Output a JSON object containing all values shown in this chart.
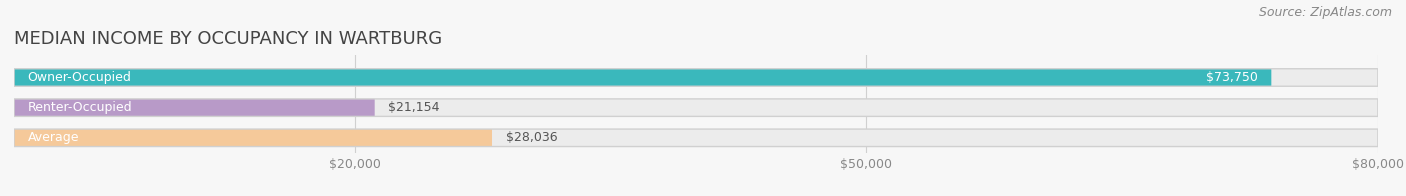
{
  "title": "MEDIAN INCOME BY OCCUPANCY IN WARTBURG",
  "source": "Source: ZipAtlas.com",
  "categories": [
    "Owner-Occupied",
    "Renter-Occupied",
    "Average"
  ],
  "values": [
    73750,
    21154,
    28036
  ],
  "labels": [
    "$73,750",
    "$21,154",
    "$28,036"
  ],
  "bar_colors": [
    "#3ab8bc",
    "#b89ac8",
    "#f5c99a"
  ],
  "bar_bg_color": "#e6e6e6",
  "value_label_color_inside": "#ffffff",
  "value_label_color_outside": "#555555",
  "cat_label_color": "#555555",
  "xlim": [
    0,
    80000
  ],
  "xticks": [
    20000,
    50000,
    80000
  ],
  "xtick_labels": [
    "$20,000",
    "$50,000",
    "$80,000"
  ],
  "title_fontsize": 13,
  "source_fontsize": 9,
  "value_fontsize": 9,
  "cat_fontsize": 9,
  "figsize": [
    14.06,
    1.96
  ],
  "dpi": 100,
  "fig_bg": "#f7f7f7",
  "bar_bg_light": "#ececec"
}
